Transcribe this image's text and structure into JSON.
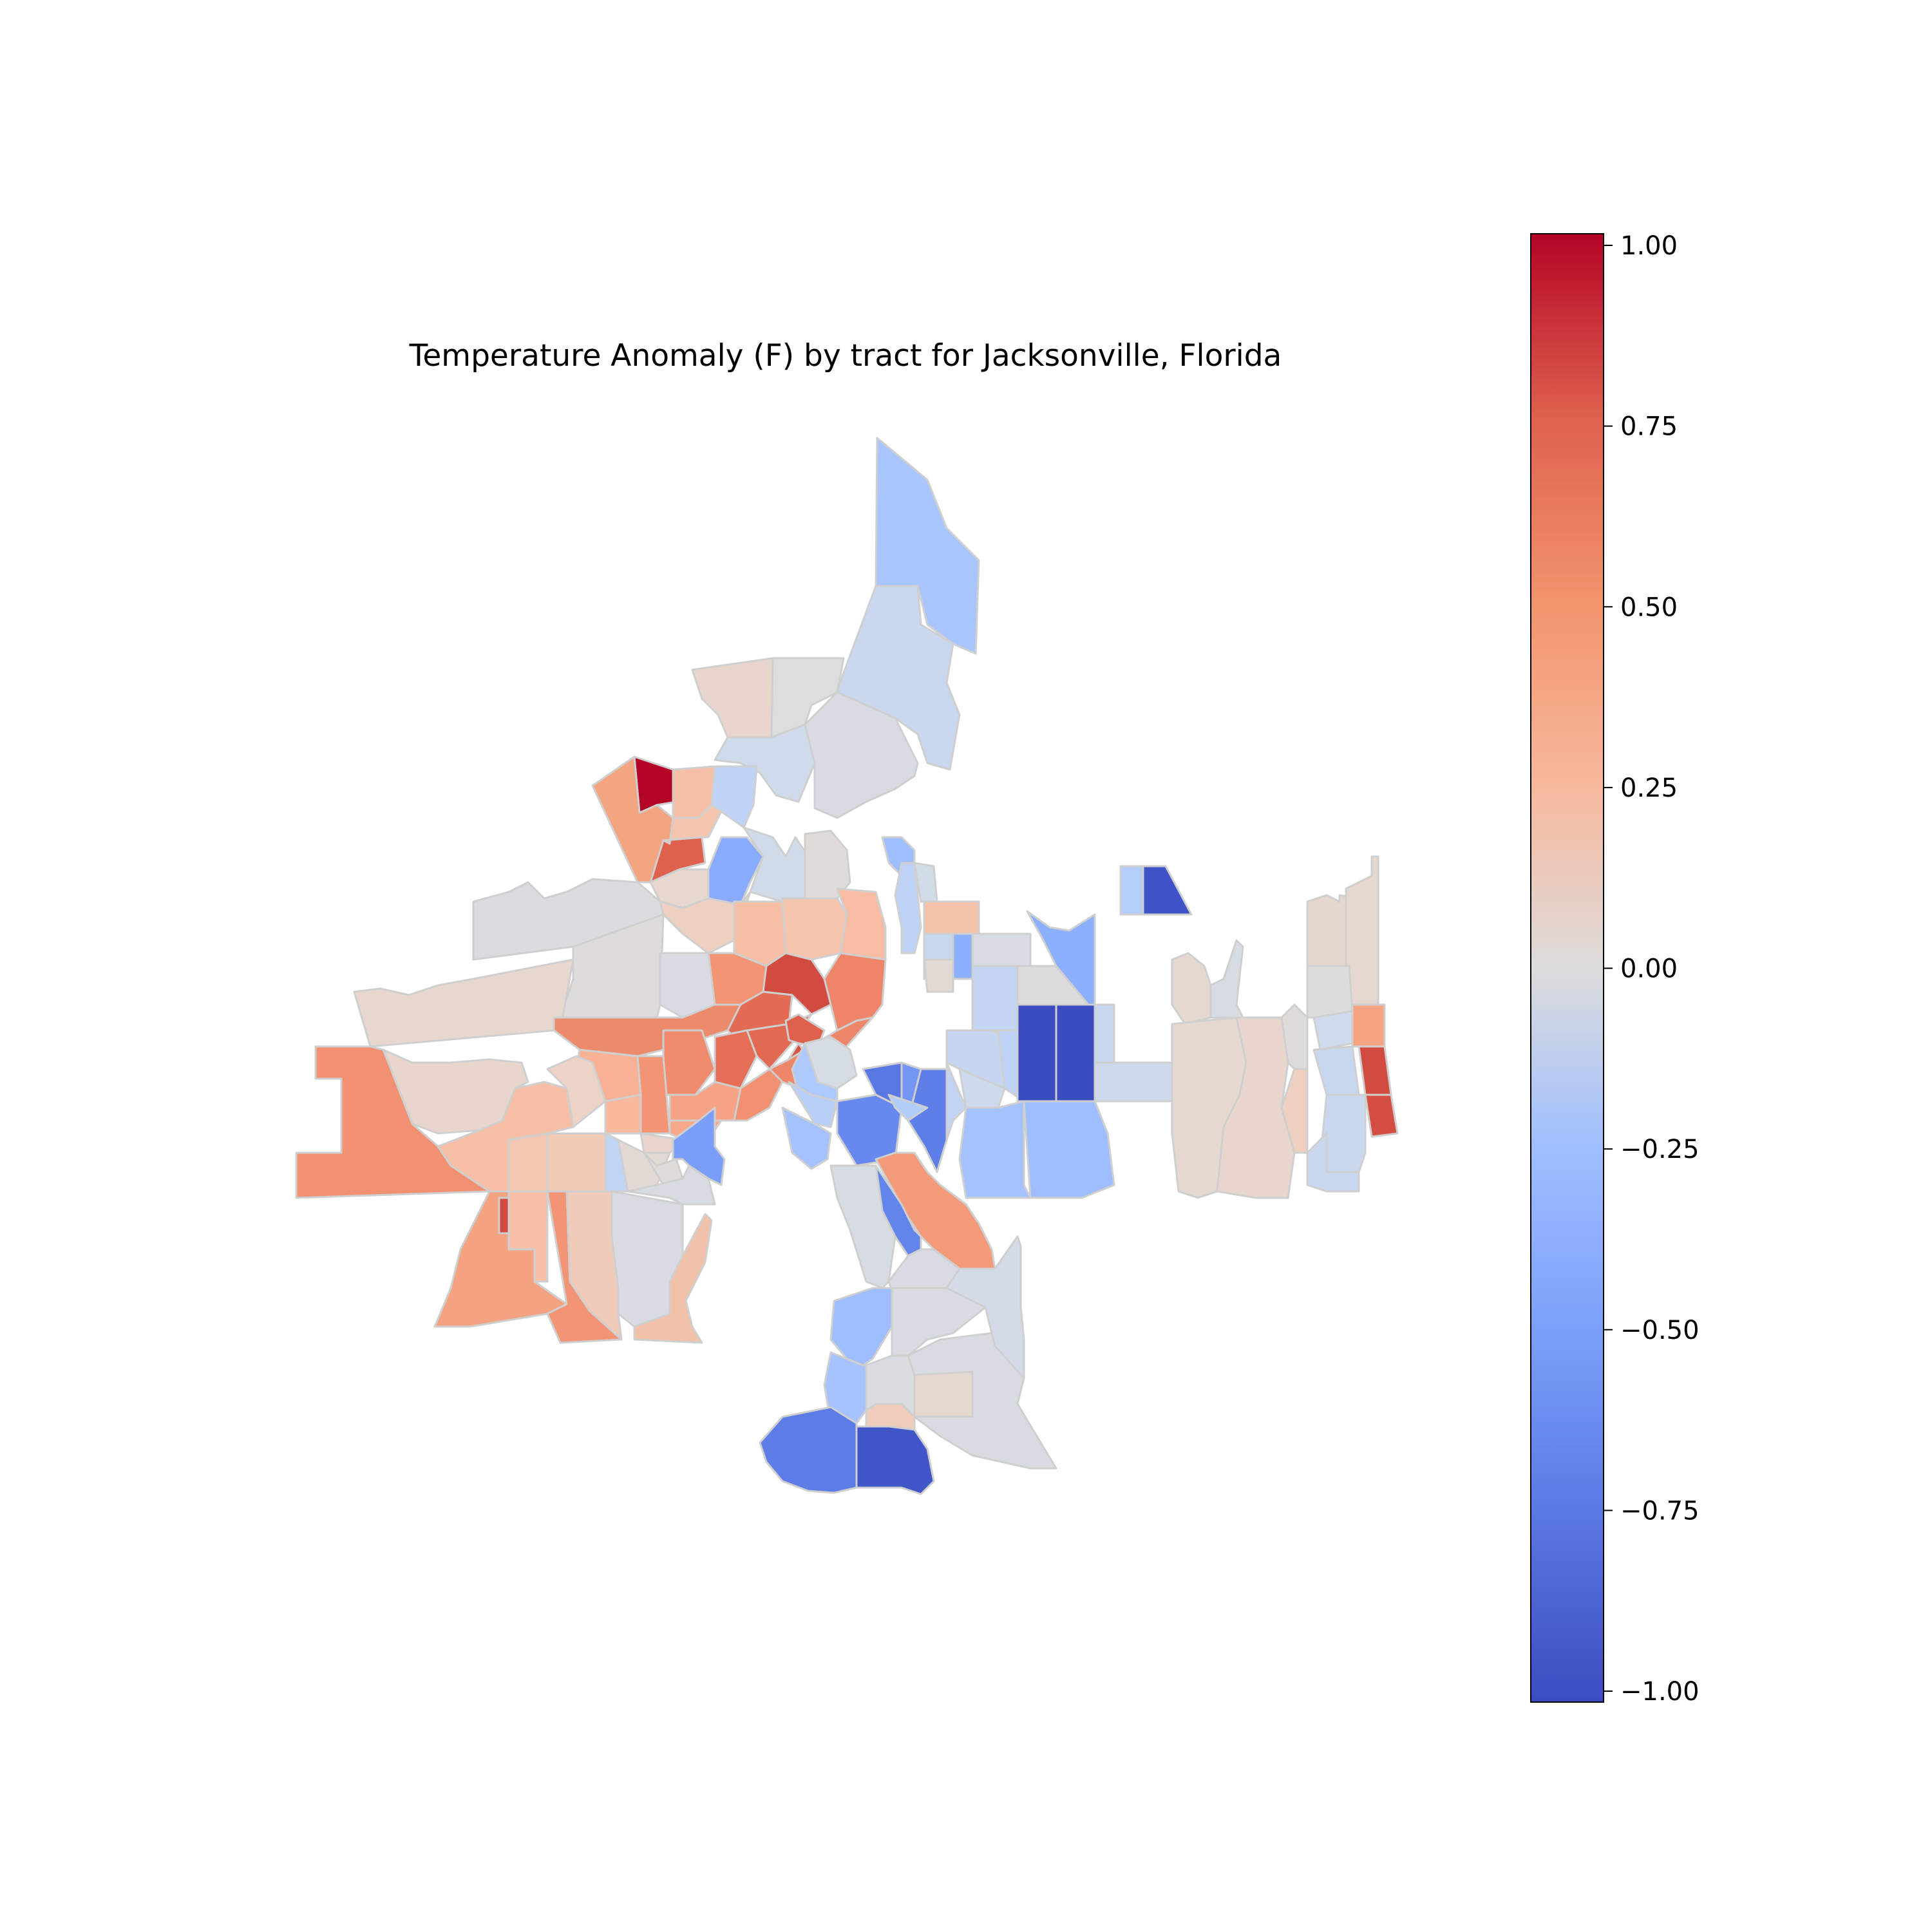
{
  "title": "Temperature Anomaly (F) by tract for Jacksonville, Florida",
  "colorbar": {
    "colormap": "coolwarm",
    "range": [
      -1.0,
      1.0
    ],
    "ticks": [
      {
        "value": 1.0,
        "label": "1.00"
      },
      {
        "value": 0.75,
        "label": "0.75"
      },
      {
        "value": 0.5,
        "label": "0.50"
      },
      {
        "value": 0.25,
        "label": "0.25"
      },
      {
        "value": 0.0,
        "label": "0.00"
      },
      {
        "value": -0.25,
        "label": "−0.25"
      },
      {
        "value": -0.5,
        "label": "−0.50"
      },
      {
        "value": -0.75,
        "label": "−0.75"
      },
      {
        "value": -1.0,
        "label": "−1.00"
      }
    ],
    "colors": {
      "max": "#b40426",
      "mid": "#dddddd",
      "min": "#3b4cc0"
    }
  },
  "tract_edge_color": "#cccccc"
}
